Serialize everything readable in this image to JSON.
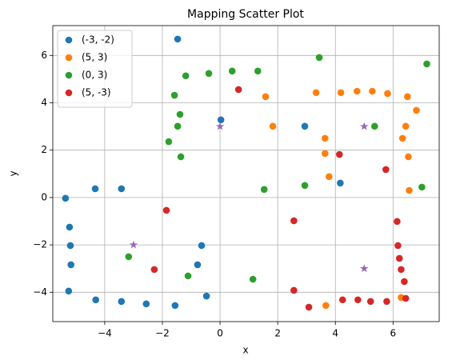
{
  "chart_data": {
    "type": "scatter",
    "title": "Mapping Scatter Plot",
    "x_label": "x",
    "y_label": "y",
    "xlim": [
      -5.8,
      7.6
    ],
    "ylim": [
      -5.24,
      7.26
    ],
    "xticks": [
      {
        "value": -4,
        "label": "−4"
      },
      {
        "value": -2,
        "label": "−2"
      },
      0,
      2,
      4,
      6
    ],
    "yticks": [
      {
        "value": -4,
        "label": "−4"
      },
      {
        "value": -2,
        "label": "−2"
      },
      0,
      2,
      4,
      6
    ],
    "grid": true,
    "legend": "upper left",
    "series": [
      {
        "name": "(-3, -2)",
        "color": "#1f77b4",
        "x": [
          -5.36,
          -4.33,
          -3.42,
          -5.22,
          -5.19,
          -5.17,
          -5.25,
          -4.31,
          -3.42,
          -2.56,
          -1.56,
          -0.47,
          -0.78,
          -0.64,
          -1.47,
          0.03,
          2.94,
          4.17
        ],
        "y": [
          -0.03,
          0.37,
          0.37,
          -1.25,
          -2.03,
          -2.84,
          -3.95,
          -4.32,
          -4.39,
          -4.49,
          -4.56,
          -4.16,
          -2.84,
          -2.03,
          6.69,
          3.28,
          3.01,
          0.61
        ]
      },
      {
        "name": "(5, 3)",
        "color": "#ff7f0e",
        "x": [
          1.58,
          1.83,
          3.33,
          4.19,
          4.75,
          5.28,
          5.81,
          6.5,
          6.81,
          6.44,
          6.33,
          6.53,
          6.56,
          3.64,
          3.64,
          3.78,
          3.67,
          6.28
        ],
        "y": [
          4.26,
          3.01,
          4.43,
          4.43,
          4.49,
          4.49,
          4.39,
          4.26,
          3.68,
          3.01,
          2.5,
          1.72,
          0.3,
          2.5,
          1.86,
          0.88,
          -4.56,
          -4.22
        ]
      },
      {
        "name": "(0, 3)",
        "color": "#2ca02c",
        "x": [
          -1.36,
          -1.47,
          -1.39,
          -1.58,
          -1.19,
          -0.39,
          0.42,
          1.31,
          3.44,
          -1.78,
          1.53,
          2.94,
          5.36,
          7.0,
          7.17,
          -3.17,
          -1.11,
          1.14
        ],
        "y": [
          1.72,
          3.01,
          3.51,
          4.32,
          5.14,
          5.24,
          5.34,
          5.34,
          5.91,
          2.36,
          0.34,
          0.51,
          3.01,
          0.44,
          5.64,
          -2.5,
          -3.31,
          -3.45
        ]
      },
      {
        "name": "(5, -3)",
        "color": "#d62728",
        "x": [
          0.64,
          4.14,
          5.75,
          -1.86,
          -2.28,
          2.56,
          2.56,
          3.08,
          4.25,
          4.78,
          5.22,
          5.78,
          6.44,
          6.39,
          6.28,
          6.22,
          6.17,
          6.14
        ],
        "y": [
          4.56,
          1.82,
          1.18,
          -0.54,
          -3.04,
          -0.98,
          -3.92,
          -4.63,
          -4.32,
          -4.32,
          -4.39,
          -4.39,
          -4.26,
          -3.55,
          -3.04,
          -2.57,
          -2.03,
          -1.01
        ]
      }
    ],
    "centers": {
      "color": "#9467bd",
      "marker": "star",
      "x": [
        0,
        5,
        -3,
        5
      ],
      "y": [
        3,
        3,
        -2,
        -3
      ]
    }
  }
}
